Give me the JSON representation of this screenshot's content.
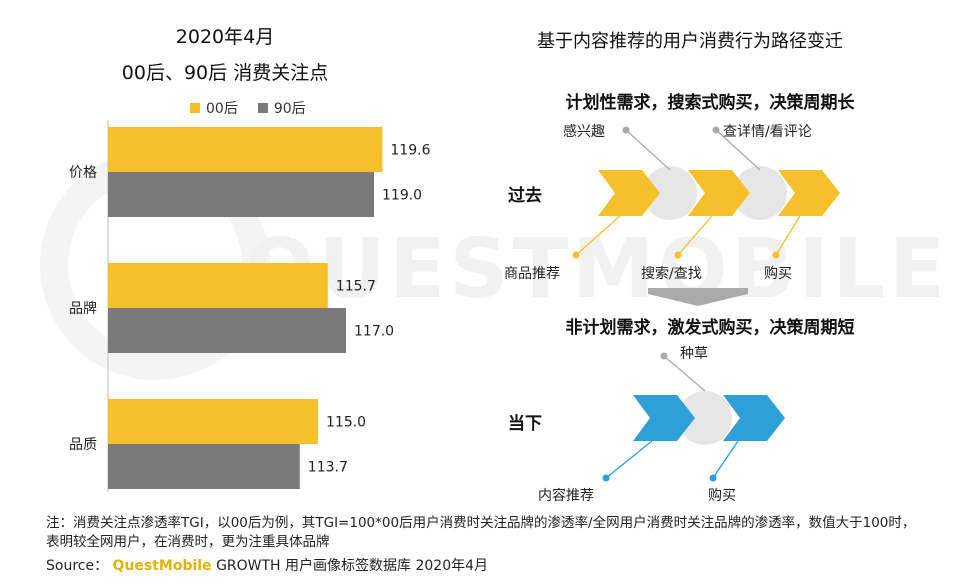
{
  "chart_data": {
    "type": "bar",
    "orientation": "horizontal",
    "title": "2020年4月",
    "subtitle": "00后、90后 消费关注点",
    "categories": [
      "价格",
      "品牌",
      "品质"
    ],
    "series": [
      {
        "name": "00后",
        "color": "#f5c02b",
        "values": [
          119.6,
          115.7,
          115.0
        ]
      },
      {
        "name": "90后",
        "color": "#7a7a7a",
        "values": [
          119.0,
          117.0,
          113.7
        ]
      }
    ],
    "xlim": [
      100,
      122
    ],
    "grid": false,
    "legend": "top"
  },
  "diagram": {
    "title": "基于内容推荐的用户消费行为路径变迁",
    "past": {
      "heading": "计划性需求，搜索式购买，决策周期长",
      "badge": "过去",
      "badge_color": "#f5c02b",
      "top_labels": [
        "感兴趣",
        "查详情/看评论"
      ],
      "bottom_labels": [
        "商品推荐",
        "搜索/查找",
        "购买"
      ]
    },
    "now": {
      "heading": "非计划需求，激发式购买，决策周期短",
      "badge": "当下",
      "badge_color": "#2f9fd8",
      "top_labels": [
        "种草"
      ],
      "bottom_labels": [
        "内容推荐",
        "购买"
      ]
    }
  },
  "footer": {
    "note": "注：消费关注点渗透率TGI，以00后为例，其TGI=100*00后用户消费时关注品牌的渗透率/全网用户消费时关注品牌的渗透率，数值大于100时，表明较全网用户，在消费时，更为注重具体品牌",
    "source_label": "Source：",
    "source_brand": "QuestMobile",
    "source_text": "GROWTH 用户画像标签数据库 2020年4月"
  },
  "watermark": "QUESTMOBILE"
}
